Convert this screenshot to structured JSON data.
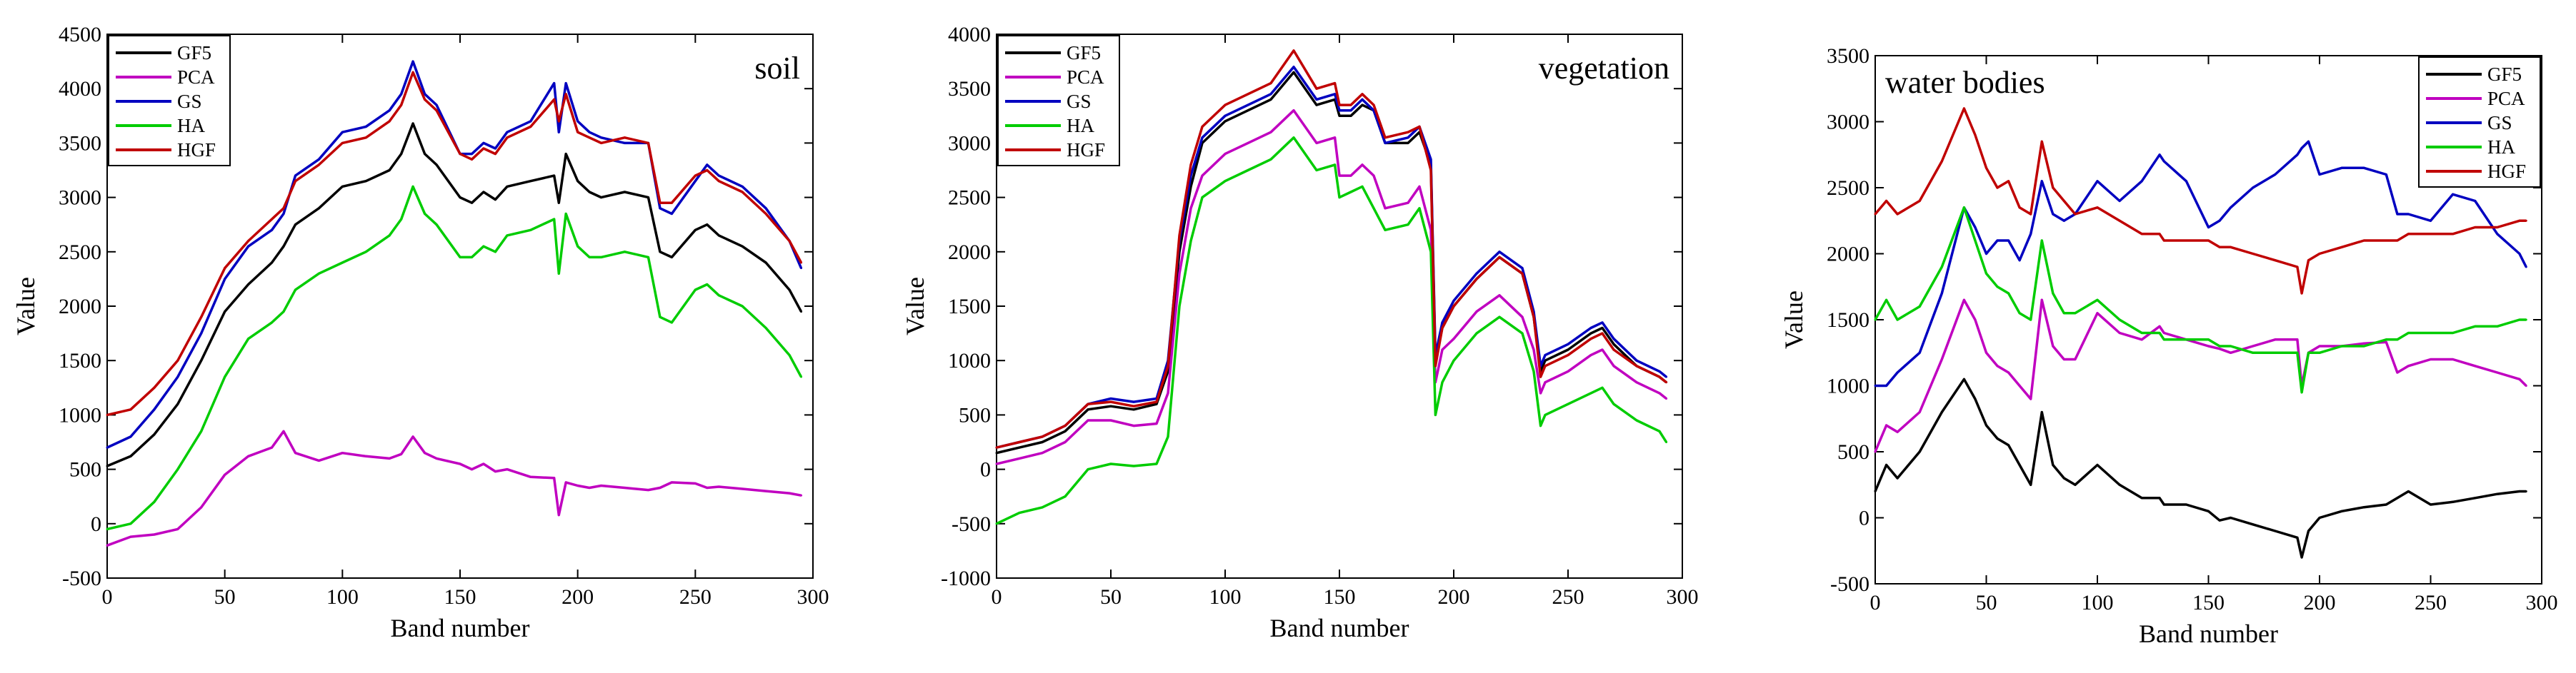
{
  "figure": {
    "panels": [
      "soil",
      "vegetation",
      "water bodies"
    ]
  },
  "chart_data": [
    {
      "type": "line",
      "title": "soil",
      "title_position": "top-right",
      "legend_position": "top-left",
      "xlabel": "Band number",
      "ylabel": "Value",
      "xlim": [
        0,
        300
      ],
      "ylim": [
        -500,
        4500
      ],
      "xticks": [
        0,
        50,
        100,
        150,
        200,
        250,
        300
      ],
      "yticks": [
        -500,
        0,
        500,
        1000,
        1500,
        2000,
        2500,
        3000,
        3500,
        4000,
        4500
      ],
      "x": [
        0,
        10,
        20,
        30,
        40,
        50,
        60,
        70,
        75,
        80,
        90,
        100,
        110,
        120,
        125,
        130,
        135,
        140,
        150,
        155,
        160,
        165,
        170,
        180,
        190,
        192,
        195,
        200,
        205,
        210,
        220,
        230,
        235,
        240,
        250,
        255,
        260,
        270,
        280,
        290,
        295
      ],
      "series": [
        {
          "name": "GF5",
          "color": "#000000",
          "values": [
            530,
            620,
            820,
            1100,
            1500,
            1950,
            2200,
            2400,
            2550,
            2750,
            2900,
            3100,
            3150,
            3250,
            3400,
            3680,
            3400,
            3300,
            3000,
            2950,
            3050,
            2980,
            3100,
            3150,
            3200,
            2950,
            3400,
            3150,
            3050,
            3000,
            3050,
            3000,
            2500,
            2450,
            2700,
            2750,
            2650,
            2550,
            2400,
            2150,
            1950
          ]
        },
        {
          "name": "PCA",
          "color": "#c000c0",
          "values": [
            -200,
            -120,
            -100,
            -50,
            150,
            450,
            620,
            700,
            850,
            650,
            580,
            650,
            620,
            600,
            640,
            800,
            650,
            600,
            550,
            500,
            550,
            480,
            500,
            430,
            420,
            80,
            380,
            350,
            330,
            350,
            330,
            310,
            330,
            380,
            370,
            330,
            340,
            320,
            300,
            280,
            260
          ]
        },
        {
          "name": "GS",
          "color": "#0000c0",
          "values": [
            700,
            800,
            1050,
            1350,
            1750,
            2250,
            2550,
            2700,
            2850,
            3200,
            3350,
            3600,
            3650,
            3800,
            3950,
            4250,
            3950,
            3850,
            3400,
            3400,
            3500,
            3450,
            3600,
            3700,
            4050,
            3600,
            4050,
            3700,
            3600,
            3550,
            3500,
            3500,
            2900,
            2850,
            3150,
            3300,
            3200,
            3100,
            2900,
            2600,
            2350
          ]
        },
        {
          "name": "HA",
          "color": "#00cc00",
          "values": [
            -50,
            0,
            200,
            500,
            850,
            1350,
            1700,
            1850,
            1950,
            2150,
            2300,
            2400,
            2500,
            2650,
            2800,
            3100,
            2850,
            2750,
            2450,
            2450,
            2550,
            2500,
            2650,
            2700,
            2800,
            2300,
            2850,
            2550,
            2450,
            2450,
            2500,
            2450,
            1900,
            1850,
            2150,
            2200,
            2100,
            2000,
            1800,
            1550,
            1350
          ]
        },
        {
          "name": "HGF",
          "color": "#c00000",
          "values": [
            1000,
            1050,
            1250,
            1500,
            1900,
            2350,
            2600,
            2800,
            2900,
            3150,
            3300,
            3500,
            3550,
            3700,
            3850,
            4150,
            3900,
            3800,
            3400,
            3350,
            3450,
            3400,
            3550,
            3650,
            3900,
            3700,
            3950,
            3600,
            3550,
            3500,
            3550,
            3500,
            2950,
            2950,
            3200,
            3250,
            3150,
            3050,
            2850,
            2600,
            2400
          ]
        }
      ]
    },
    {
      "type": "line",
      "title": "vegetation",
      "title_position": "top-right",
      "legend_position": "top-left",
      "xlabel": "Band number",
      "ylabel": "Value",
      "xlim": [
        0,
        300
      ],
      "ylim": [
        -1000,
        4000
      ],
      "xticks": [
        0,
        50,
        100,
        150,
        200,
        250,
        300
      ],
      "yticks": [
        -1000,
        -500,
        0,
        500,
        1000,
        1500,
        2000,
        2500,
        3000,
        3500,
        4000
      ],
      "x": [
        0,
        10,
        20,
        30,
        40,
        50,
        60,
        70,
        75,
        80,
        85,
        90,
        100,
        110,
        120,
        130,
        140,
        148,
        150,
        155,
        160,
        165,
        170,
        180,
        185,
        190,
        192,
        195,
        200,
        210,
        220,
        230,
        235,
        238,
        240,
        250,
        260,
        265,
        270,
        280,
        290,
        293
      ],
      "series": [
        {
          "name": "GF5",
          "color": "#000000",
          "values": [
            150,
            200,
            250,
            350,
            550,
            580,
            550,
            600,
            900,
            2000,
            2600,
            3000,
            3200,
            3300,
            3400,
            3650,
            3350,
            3400,
            3250,
            3250,
            3350,
            3300,
            3000,
            3000,
            3100,
            2800,
            1000,
            1300,
            1500,
            1750,
            1950,
            1800,
            1400,
            900,
            1000,
            1100,
            1250,
            1300,
            1150,
            950,
            850,
            800
          ]
        },
        {
          "name": "PCA",
          "color": "#c000c0",
          "values": [
            50,
            100,
            150,
            250,
            450,
            450,
            400,
            420,
            700,
            1800,
            2400,
            2700,
            2900,
            3000,
            3100,
            3300,
            3000,
            3050,
            2700,
            2700,
            2800,
            2700,
            2400,
            2450,
            2600,
            2200,
            800,
            1100,
            1200,
            1450,
            1600,
            1400,
            1100,
            700,
            800,
            900,
            1050,
            1100,
            950,
            800,
            700,
            650
          ]
        },
        {
          "name": "GS",
          "color": "#0000c0",
          "values": [
            200,
            250,
            300,
            400,
            600,
            650,
            620,
            650,
            1000,
            2100,
            2700,
            3050,
            3250,
            3350,
            3450,
            3700,
            3400,
            3450,
            3300,
            3300,
            3400,
            3300,
            3000,
            3050,
            3150,
            2850,
            1050,
            1350,
            1550,
            1800,
            2000,
            1850,
            1450,
            950,
            1050,
            1150,
            1300,
            1350,
            1200,
            1000,
            900,
            850
          ]
        },
        {
          "name": "HA",
          "color": "#00cc00",
          "values": [
            -500,
            -400,
            -350,
            -250,
            0,
            50,
            30,
            50,
            300,
            1500,
            2100,
            2500,
            2650,
            2750,
            2850,
            3050,
            2750,
            2800,
            2500,
            2550,
            2600,
            2400,
            2200,
            2250,
            2400,
            2000,
            500,
            800,
            1000,
            1250,
            1400,
            1250,
            900,
            400,
            500,
            600,
            700,
            750,
            600,
            450,
            350,
            250
          ]
        },
        {
          "name": "HGF",
          "color": "#c00000",
          "values": [
            200,
            250,
            300,
            400,
            600,
            620,
            580,
            620,
            950,
            2150,
            2800,
            3150,
            3350,
            3450,
            3550,
            3850,
            3500,
            3550,
            3350,
            3350,
            3450,
            3350,
            3050,
            3100,
            3150,
            2750,
            950,
            1300,
            1500,
            1750,
            1950,
            1800,
            1400,
            850,
            950,
            1050,
            1200,
            1250,
            1100,
            950,
            850,
            800
          ]
        }
      ]
    },
    {
      "type": "line",
      "title": "water bodies",
      "title_position": "top-left",
      "legend_position": "top-right",
      "xlabel": "Band number",
      "ylabel": "Value",
      "xlim": [
        0,
        300
      ],
      "ylim": [
        -500,
        3500
      ],
      "xticks": [
        0,
        50,
        100,
        150,
        200,
        250,
        300
      ],
      "yticks": [
        -500,
        0,
        500,
        1000,
        1500,
        2000,
        2500,
        3000,
        3500
      ],
      "x": [
        0,
        5,
        10,
        20,
        30,
        40,
        45,
        50,
        55,
        60,
        65,
        70,
        75,
        80,
        85,
        90,
        100,
        110,
        120,
        128,
        130,
        140,
        150,
        155,
        160,
        170,
        180,
        190,
        192,
        195,
        200,
        210,
        220,
        230,
        235,
        240,
        250,
        260,
        270,
        280,
        290,
        293
      ],
      "series": [
        {
          "name": "GF5",
          "color": "#000000",
          "values": [
            200,
            400,
            300,
            500,
            800,
            1050,
            900,
            700,
            600,
            550,
            400,
            250,
            800,
            400,
            300,
            250,
            400,
            250,
            150,
            150,
            100,
            100,
            50,
            -20,
            0,
            -50,
            -100,
            -150,
            -300,
            -100,
            0,
            50,
            80,
            100,
            150,
            200,
            100,
            120,
            150,
            180,
            200,
            200
          ]
        },
        {
          "name": "PCA",
          "color": "#c000c0",
          "values": [
            500,
            700,
            650,
            800,
            1200,
            1650,
            1500,
            1250,
            1150,
            1100,
            1000,
            900,
            1650,
            1300,
            1200,
            1200,
            1550,
            1400,
            1350,
            1450,
            1400,
            1350,
            1300,
            1280,
            1250,
            1300,
            1350,
            1350,
            1000,
            1250,
            1300,
            1300,
            1320,
            1330,
            1100,
            1150,
            1200,
            1200,
            1150,
            1100,
            1050,
            1000
          ]
        },
        {
          "name": "GS",
          "color": "#0000c0",
          "values": [
            1000,
            1000,
            1100,
            1250,
            1700,
            2350,
            2200,
            2000,
            2100,
            2100,
            1950,
            2150,
            2550,
            2300,
            2250,
            2300,
            2550,
            2400,
            2550,
            2750,
            2700,
            2550,
            2200,
            2250,
            2350,
            2500,
            2600,
            2750,
            2800,
            2850,
            2600,
            2650,
            2650,
            2600,
            2300,
            2300,
            2250,
            2450,
            2400,
            2150,
            2000,
            1900
          ]
        },
        {
          "name": "HA",
          "color": "#00cc00",
          "values": [
            1500,
            1650,
            1500,
            1600,
            1900,
            2350,
            2100,
            1850,
            1750,
            1700,
            1550,
            1500,
            2100,
            1700,
            1550,
            1550,
            1650,
            1500,
            1400,
            1400,
            1350,
            1350,
            1350,
            1300,
            1300,
            1250,
            1250,
            1250,
            950,
            1250,
            1250,
            1300,
            1300,
            1350,
            1350,
            1400,
            1400,
            1400,
            1450,
            1450,
            1500,
            1500
          ]
        },
        {
          "name": "HGF",
          "color": "#c00000",
          "values": [
            2300,
            2400,
            2300,
            2400,
            2700,
            3100,
            2900,
            2650,
            2500,
            2550,
            2350,
            2300,
            2850,
            2500,
            2400,
            2300,
            2350,
            2250,
            2150,
            2150,
            2100,
            2100,
            2100,
            2050,
            2050,
            2000,
            1950,
            1900,
            1700,
            1950,
            2000,
            2050,
            2100,
            2100,
            2100,
            2150,
            2150,
            2150,
            2200,
            2200,
            2250,
            2250
          ]
        }
      ]
    }
  ]
}
